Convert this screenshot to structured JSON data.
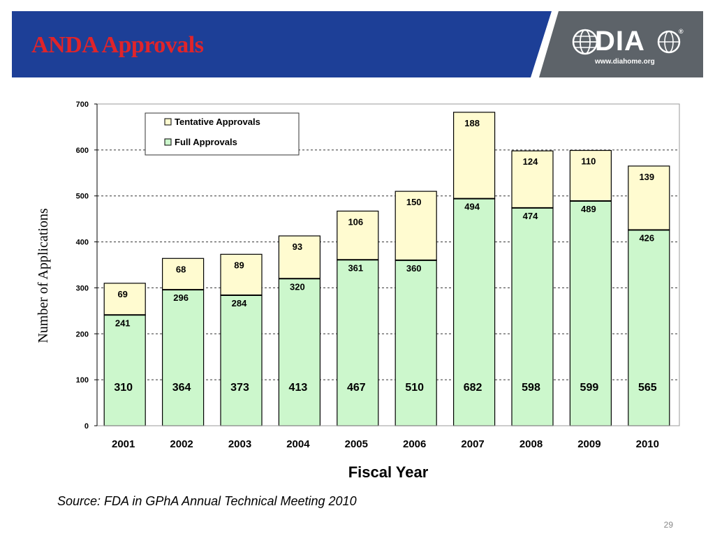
{
  "slide": {
    "title": "ANDA Approvals",
    "source": "Source: FDA in GPhA Annual Technical Meeting 2010",
    "page_number": "29"
  },
  "logo": {
    "name": "DIA",
    "url": "www.diahome.org",
    "reg_mark": "®"
  },
  "colors": {
    "header_bg": "#1d3f97",
    "title": "#e0242a",
    "logo_panel": "#5d6369",
    "full": "#ccf7cc",
    "tentative": "#fffbd0"
  },
  "chart_data": {
    "type": "bar",
    "stacked": true,
    "title": "",
    "xlabel": "Fiscal Year",
    "ylabel": "Number of Applications",
    "ylim": [
      0,
      700
    ],
    "yticks": [
      0,
      100,
      200,
      300,
      400,
      500,
      600,
      700
    ],
    "grid": true,
    "legend_position": "top-left",
    "categories": [
      "2001",
      "2002",
      "2003",
      "2004",
      "2005",
      "2006",
      "2007",
      "2008",
      "2009",
      "2010"
    ],
    "series": [
      {
        "name": "Full Approvals",
        "values": [
          241,
          296,
          284,
          320,
          361,
          360,
          494,
          474,
          489,
          426
        ]
      },
      {
        "name": "Tentative Approvals",
        "values": [
          69,
          68,
          89,
          93,
          106,
          150,
          188,
          124,
          110,
          139
        ]
      }
    ],
    "totals": [
      310,
      364,
      373,
      413,
      467,
      510,
      682,
      598,
      599,
      565
    ]
  }
}
